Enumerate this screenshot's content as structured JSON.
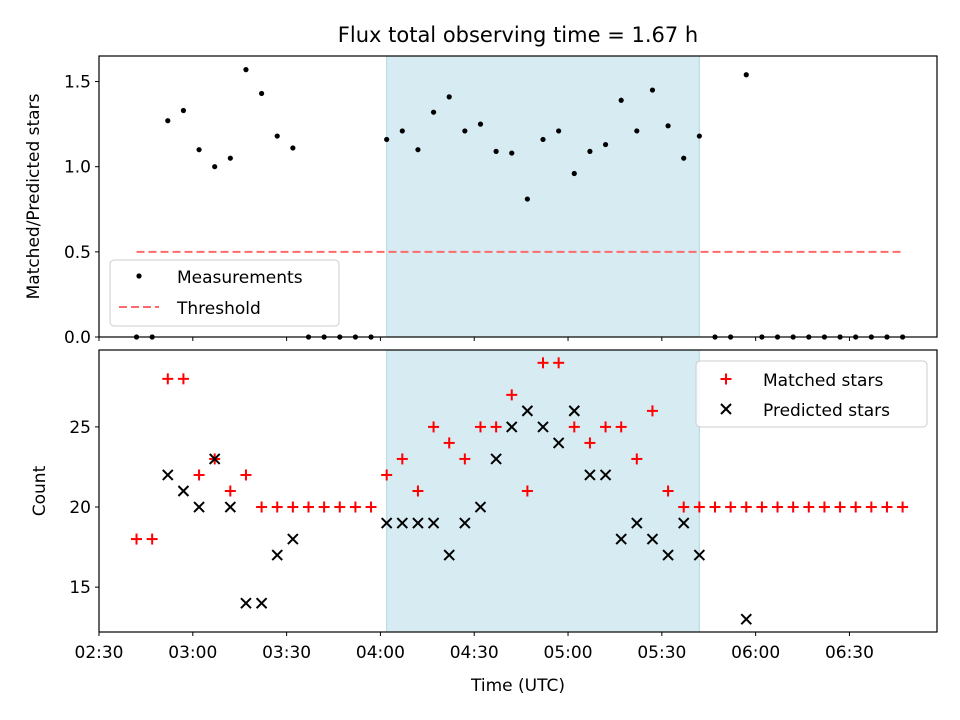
{
  "chart_data": [
    {
      "type": "scatter",
      "title": "Flux total observing time = 1.67 h",
      "xlabel": "",
      "ylabel": "Matched/Predicted stars",
      "ylim": [
        0,
        1.65
      ],
      "yticks": [
        "0.0",
        "0.5",
        "1.0",
        "1.5"
      ],
      "shaded_span": [
        "04:02",
        "05:42"
      ],
      "shaded_color": "#add8e6",
      "legend_position": "lower-left",
      "threshold": {
        "name": "Threshold",
        "value": 0.5,
        "x_range": [
          "02:42",
          "06:47"
        ],
        "color": "#ff6b6b"
      },
      "series": [
        {
          "name": "Measurements",
          "color": "#000000",
          "x": [
            "02:42",
            "02:47",
            "02:52",
            "02:57",
            "03:02",
            "03:07",
            "03:12",
            "03:17",
            "03:22",
            "03:27",
            "03:32",
            "03:37",
            "03:42",
            "03:47",
            "03:52",
            "03:57",
            "04:02",
            "04:07",
            "04:12",
            "04:17",
            "04:22",
            "04:27",
            "04:32",
            "04:37",
            "04:42",
            "04:47",
            "04:52",
            "04:57",
            "05:02",
            "05:07",
            "05:12",
            "05:17",
            "05:22",
            "05:27",
            "05:32",
            "05:37",
            "05:42",
            "05:47",
            "05:52",
            "05:57",
            "06:02",
            "06:07",
            "06:12",
            "06:17",
            "06:22",
            "06:27",
            "06:32",
            "06:37",
            "06:42",
            "06:47"
          ],
          "y": [
            0,
            0,
            1.27,
            1.33,
            1.1,
            1.0,
            1.05,
            1.57,
            1.43,
            1.18,
            1.11,
            0,
            0,
            0,
            0,
            0,
            1.16,
            1.21,
            1.1,
            1.32,
            1.41,
            1.21,
            1.25,
            1.09,
            1.08,
            0.81,
            1.16,
            1.21,
            0.96,
            1.09,
            1.13,
            1.39,
            1.21,
            1.45,
            1.24,
            1.05,
            1.18,
            0,
            0,
            1.54,
            0,
            0,
            0,
            0,
            0,
            0,
            0,
            0,
            0,
            0
          ]
        }
      ]
    },
    {
      "type": "scatter",
      "title": "",
      "xlabel": "Time (UTC)",
      "ylabel": "Count",
      "ylim": [
        12.2,
        29.8
      ],
      "yticks": [
        "15",
        "20",
        "25"
      ],
      "xticks": [
        "02:30",
        "03:00",
        "03:30",
        "04:00",
        "04:30",
        "05:00",
        "05:30",
        "06:00",
        "06:30"
      ],
      "shaded_span": [
        "04:02",
        "05:42"
      ],
      "legend_position": "upper-right",
      "series": [
        {
          "name": "Matched stars",
          "marker": "+",
          "color": "#ff0000",
          "x": [
            "02:42",
            "02:47",
            "02:52",
            "02:57",
            "03:02",
            "03:07",
            "03:12",
            "03:17",
            "03:22",
            "03:27",
            "03:32",
            "03:37",
            "03:42",
            "03:47",
            "03:52",
            "03:57",
            "04:02",
            "04:07",
            "04:12",
            "04:17",
            "04:22",
            "04:27",
            "04:32",
            "04:37",
            "04:42",
            "04:47",
            "04:52",
            "04:57",
            "05:02",
            "05:07",
            "05:12",
            "05:17",
            "05:22",
            "05:27",
            "05:32",
            "05:37",
            "05:42",
            "05:47",
            "05:52",
            "05:57",
            "06:02",
            "06:07",
            "06:12",
            "06:17",
            "06:22",
            "06:27",
            "06:32",
            "06:37",
            "06:42",
            "06:47"
          ],
          "y": [
            18,
            18,
            28,
            28,
            22,
            23,
            21,
            22,
            20,
            20,
            20,
            20,
            20,
            20,
            20,
            20,
            22,
            23,
            21,
            25,
            24,
            23,
            25,
            25,
            27,
            21,
            29,
            29,
            25,
            24,
            25,
            25,
            23,
            26,
            21,
            20,
            20,
            20,
            20,
            20,
            20,
            20,
            20,
            20,
            20,
            20,
            20,
            20,
            20,
            20
          ]
        },
        {
          "name": "Predicted stars",
          "marker": "x",
          "color": "#000000",
          "x": [
            "02:52",
            "02:57",
            "03:02",
            "03:07",
            "03:12",
            "03:17",
            "03:22",
            "03:27",
            "03:32",
            "04:02",
            "04:07",
            "04:12",
            "04:17",
            "04:22",
            "04:27",
            "04:32",
            "04:37",
            "04:42",
            "04:47",
            "04:52",
            "04:57",
            "05:02",
            "05:07",
            "05:12",
            "05:17",
            "05:22",
            "05:27",
            "05:32",
            "05:37",
            "05:42",
            "05:57"
          ],
          "y": [
            22,
            21,
            20,
            23,
            20,
            14,
            14,
            17,
            18,
            19,
            19,
            19,
            19,
            17,
            19,
            20,
            23,
            25,
            26,
            25,
            24,
            26,
            22,
            22,
            18,
            19,
            18,
            17,
            19,
            17,
            13
          ]
        }
      ]
    }
  ]
}
